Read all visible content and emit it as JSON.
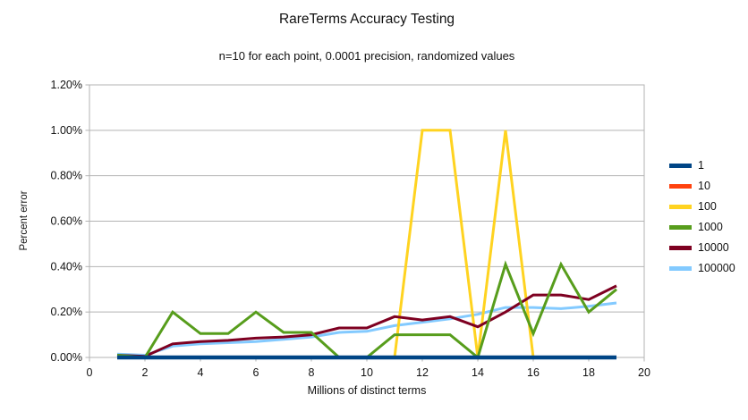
{
  "chart": {
    "title": "RareTerms Accuracy Testing",
    "subtitle": "n=10 for each point, 0.0001 precision, randomized values",
    "x_axis_label": "Millions of distinct terms",
    "y_axis_label": "Percent error"
  },
  "colors": {
    "grid": "#b3b3b3",
    "axis_text": "#111111",
    "background": "#ffffff"
  },
  "chart_data": {
    "type": "line",
    "title": "RareTerms Accuracy Testing",
    "subtitle": "n=10 for each point, 0.0001 precision, randomized values",
    "xlabel": "Millions of distinct terms",
    "ylabel": "Percent error",
    "xlim": [
      0,
      20
    ],
    "ylim_percent": [
      0.0,
      1.2
    ],
    "grid": "horizontal",
    "legend_position": "right",
    "x_ticks": [
      0,
      2,
      4,
      6,
      8,
      10,
      12,
      14,
      16,
      18,
      20
    ],
    "y_ticks": [
      0.0,
      0.2,
      0.4,
      0.6,
      0.8,
      1.0,
      1.2
    ],
    "y_tick_labels": [
      "0.00%",
      "0.20%",
      "0.40%",
      "0.60%",
      "0.80%",
      "1.00%",
      "1.20%"
    ],
    "x": [
      1,
      2,
      3,
      4,
      5,
      6,
      7,
      8,
      9,
      10,
      11,
      12,
      13,
      14,
      15,
      16,
      17,
      18,
      19
    ],
    "series": [
      {
        "name": "1",
        "color": "#004586",
        "values_percent": [
          0,
          0,
          0,
          0,
          0,
          0,
          0,
          0,
          0,
          0,
          0,
          0,
          0,
          0,
          0,
          0,
          0,
          0,
          0
        ]
      },
      {
        "name": "10",
        "color": "#FF420E",
        "values_percent": [
          0,
          0,
          0,
          0,
          0,
          0,
          0,
          0,
          0,
          0,
          0,
          0,
          0,
          0,
          0,
          0,
          0,
          0,
          0
        ]
      },
      {
        "name": "100",
        "color": "#FFD320",
        "values_percent": [
          0,
          0,
          0,
          0,
          0,
          0,
          0,
          0,
          0,
          0,
          0,
          1.0,
          1.0,
          0,
          1.0,
          0,
          0,
          0,
          0
        ]
      },
      {
        "name": "1000",
        "color": "#579D1C",
        "values_percent": [
          0.01,
          0,
          0.2,
          0.105,
          0.105,
          0.2,
          0.11,
          0.11,
          0,
          0,
          0.1,
          0.1,
          0.1,
          0,
          0.41,
          0.105,
          0.41,
          0.2,
          0.3
        ]
      },
      {
        "name": "10000",
        "color": "#7E0021",
        "values_percent": [
          0.01,
          0.005,
          0.06,
          0.07,
          0.075,
          0.085,
          0.09,
          0.1,
          0.13,
          0.13,
          0.18,
          0.165,
          0.18,
          0.135,
          0.2,
          0.275,
          0.275,
          0.255,
          0.315
        ]
      },
      {
        "name": "100000",
        "color": "#83CAFF",
        "values_percent": [
          0.015,
          0.01,
          0.05,
          0.06,
          0.065,
          0.07,
          0.08,
          0.09,
          0.11,
          0.115,
          0.14,
          0.155,
          0.17,
          0.19,
          0.22,
          0.22,
          0.215,
          0.225,
          0.24
        ]
      }
    ]
  }
}
